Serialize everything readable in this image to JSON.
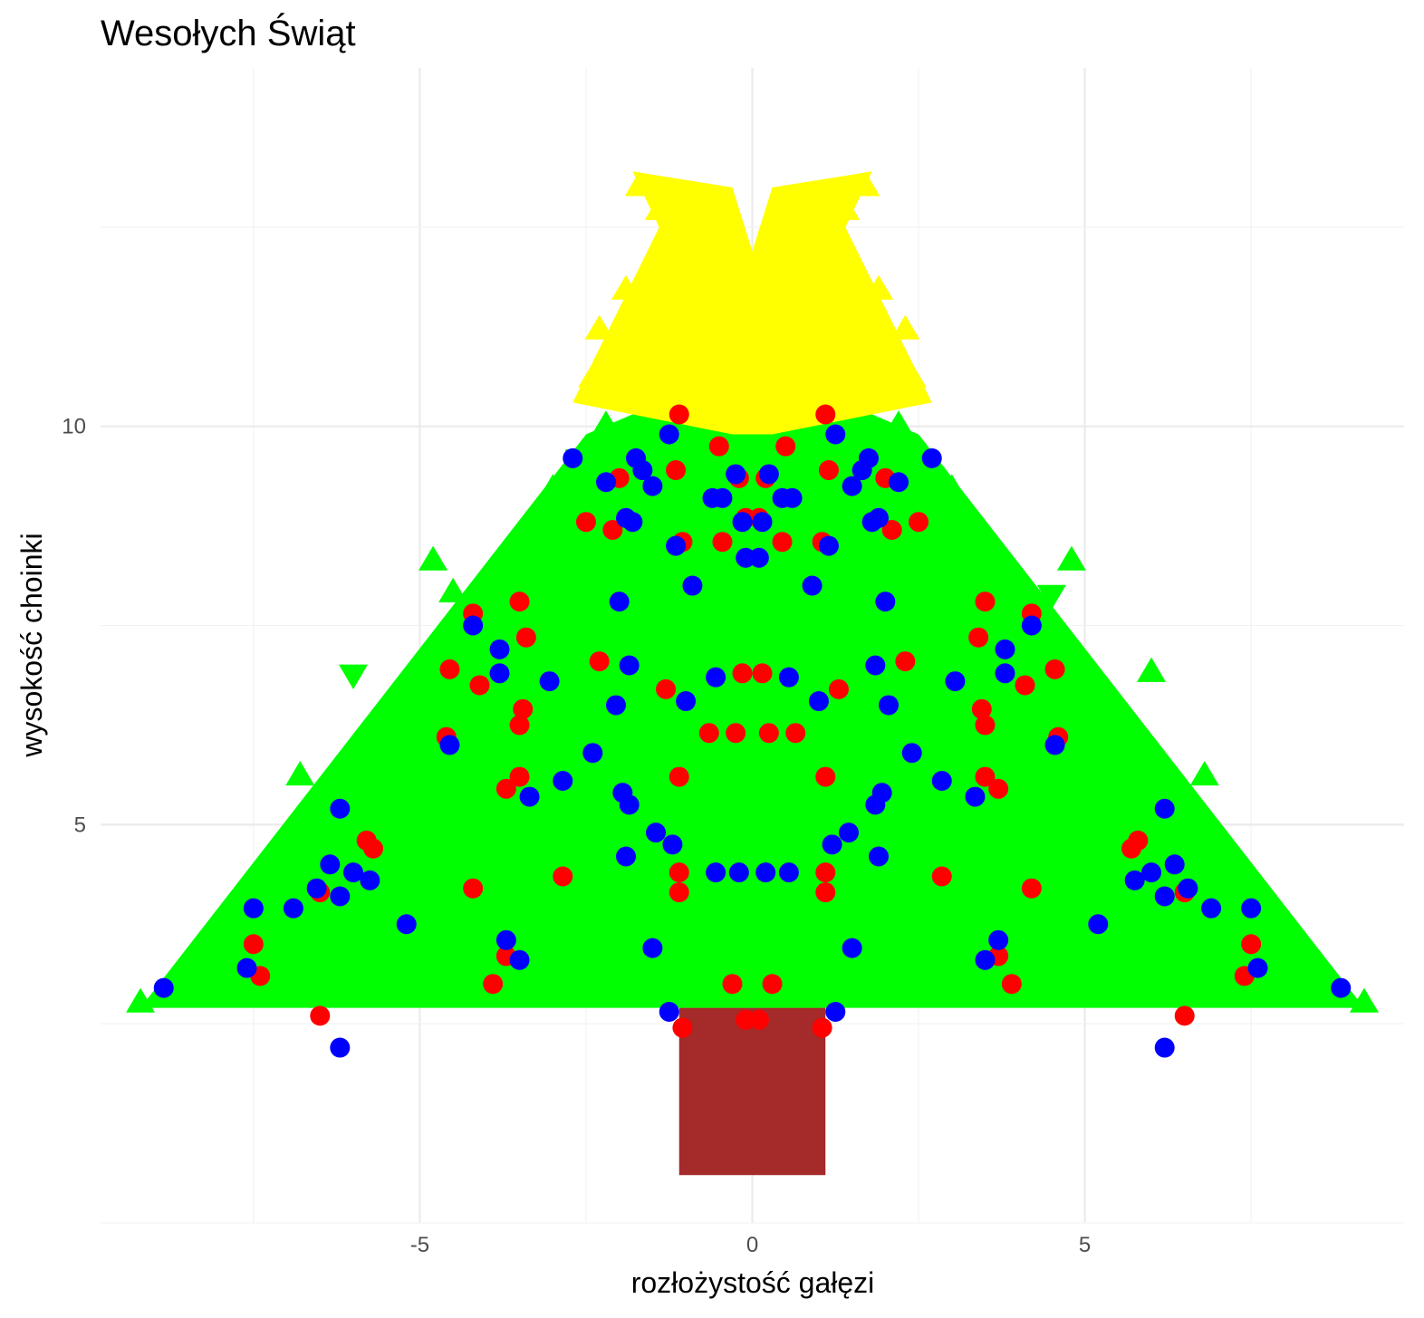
{
  "chart_data": {
    "type": "scatter",
    "title": "Wesołych Świąt",
    "xlabel": "rozłożystość gałęzi",
    "ylabel": "wysokość choinki",
    "xlim": [
      -9.8,
      9.8
    ],
    "ylim": [
      0.0,
      14.5
    ],
    "x_ticks": [
      -5,
      0,
      5
    ],
    "x_tick_labels": [
      "-5",
      "0",
      "5"
    ],
    "y_ticks": [
      5,
      10
    ],
    "y_tick_labels": [
      "5",
      "10"
    ],
    "grid": true,
    "legend": "none",
    "trunk": {
      "x": [
        -1.1,
        1.1
      ],
      "y": [
        0.6,
        2.7
      ],
      "color": "#a52a2a"
    },
    "tree": {
      "color": "#00ff00",
      "shape": "triangle",
      "outline": [
        [
          -9.2,
          2.7
        ],
        [
          9.2,
          2.7
        ],
        [
          2.5,
          9.9
        ],
        [
          0,
          10.8
        ],
        [
          -2.5,
          9.9
        ]
      ],
      "points": [
        [
          -9.2,
          2.75
        ],
        [
          9.2,
          2.75
        ],
        [
          -7.6,
          3.8
        ],
        [
          7.6,
          3.8
        ],
        [
          -6.8,
          5.6
        ],
        [
          6.8,
          5.6
        ],
        [
          -6.7,
          4.5
        ],
        [
          6.7,
          4.5
        ],
        [
          -7.3,
          4.2
        ],
        [
          7.3,
          4.2
        ],
        [
          -6.0,
          6.9
        ],
        [
          6.0,
          6.9
        ],
        [
          -5.0,
          6.2
        ],
        [
          5.0,
          6.2
        ],
        [
          -4.8,
          8.3
        ],
        [
          4.8,
          8.3
        ],
        [
          -4.5,
          7.9
        ],
        [
          4.5,
          7.9
        ],
        [
          -3.7,
          8.0
        ],
        [
          3.7,
          8.0
        ],
        [
          -3.3,
          8.3
        ],
        [
          3.3,
          8.3
        ],
        [
          -3.0,
          9.2
        ],
        [
          3.0,
          9.2
        ],
        [
          -2.6,
          9.6
        ],
        [
          2.6,
          9.6
        ],
        [
          -2.2,
          10.0
        ],
        [
          2.2,
          10.0
        ],
        [
          -1.6,
          10.3
        ],
        [
          1.6,
          10.3
        ],
        [
          -5.5,
          3.2
        ],
        [
          5.5,
          3.2
        ],
        [
          -3.5,
          4.0
        ],
        [
          3.5,
          4.0
        ],
        [
          -2.0,
          3.0
        ],
        [
          2.0,
          3.0
        ]
      ]
    },
    "star": {
      "color": "#ffff00",
      "shape": "triangle",
      "outline": [
        [
          -0.3,
          9.9
        ],
        [
          0.3,
          9.9
        ],
        [
          2.7,
          10.3
        ],
        [
          1.4,
          12.5
        ],
        [
          1.8,
          13.2
        ],
        [
          0.3,
          13.0
        ],
        [
          0,
          12.2
        ],
        [
          -0.3,
          13.0
        ],
        [
          -1.8,
          13.2
        ],
        [
          -1.4,
          12.5
        ],
        [
          -2.7,
          10.3
        ]
      ],
      "points": [
        [
          -1.7,
          13.0
        ],
        [
          1.7,
          13.0
        ],
        [
          -1.4,
          12.7
        ],
        [
          1.4,
          12.7
        ],
        [
          -0.6,
          12.5
        ],
        [
          0.6,
          12.5
        ],
        [
          -1.9,
          11.7
        ],
        [
          1.9,
          11.7
        ],
        [
          -1.6,
          11.3
        ],
        [
          1.6,
          11.3
        ],
        [
          -2.4,
          10.6
        ],
        [
          2.4,
          10.6
        ],
        [
          -2.1,
          10.4
        ],
        [
          2.1,
          10.4
        ],
        [
          -1.0,
          11.8
        ],
        [
          1.0,
          11.8
        ],
        [
          -0.5,
          11.0
        ],
        [
          0.5,
          11.0
        ],
        [
          -2.3,
          11.2
        ],
        [
          2.3,
          11.2
        ],
        [
          0.0,
          12.0
        ]
      ]
    },
    "series": [
      {
        "color": "#ff0000",
        "shape": "circle",
        "points": [
          [
            -1.1,
            10.15
          ],
          [
            1.1,
            10.15
          ],
          [
            -1.15,
            9.45
          ],
          [
            1.15,
            9.45
          ],
          [
            -0.5,
            9.75
          ],
          [
            0.5,
            9.75
          ],
          [
            -0.2,
            9.35
          ],
          [
            0.2,
            9.35
          ],
          [
            -0.1,
            8.85
          ],
          [
            0.1,
            8.85
          ],
          [
            -2.0,
            9.35
          ],
          [
            2.0,
            9.35
          ],
          [
            -2.5,
            8.8
          ],
          [
            2.5,
            8.8
          ],
          [
            -2.1,
            8.7
          ],
          [
            2.1,
            8.7
          ],
          [
            -1.05,
            8.55
          ],
          [
            1.05,
            8.55
          ],
          [
            -0.45,
            8.55
          ],
          [
            0.45,
            8.55
          ],
          [
            -3.5,
            7.8
          ],
          [
            3.5,
            7.8
          ],
          [
            -4.2,
            7.65
          ],
          [
            4.2,
            7.65
          ],
          [
            -3.4,
            7.35
          ],
          [
            3.4,
            7.35
          ],
          [
            -2.3,
            7.05
          ],
          [
            2.3,
            7.05
          ],
          [
            -4.55,
            6.95
          ],
          [
            4.55,
            6.95
          ],
          [
            -4.1,
            6.75
          ],
          [
            4.1,
            6.75
          ],
          [
            -1.3,
            6.7
          ],
          [
            1.3,
            6.7
          ],
          [
            -0.15,
            6.9
          ],
          [
            0.15,
            6.9
          ],
          [
            -3.45,
            6.45
          ],
          [
            3.45,
            6.45
          ],
          [
            -3.5,
            6.25
          ],
          [
            3.5,
            6.25
          ],
          [
            -0.65,
            6.15
          ],
          [
            0.65,
            6.15
          ],
          [
            -0.25,
            6.15
          ],
          [
            0.25,
            6.15
          ],
          [
            -4.6,
            6.1
          ],
          [
            4.6,
            6.1
          ],
          [
            -3.5,
            5.6
          ],
          [
            3.5,
            5.6
          ],
          [
            -1.1,
            5.6
          ],
          [
            1.1,
            5.6
          ],
          [
            -3.7,
            5.45
          ],
          [
            3.7,
            5.45
          ],
          [
            -5.8,
            4.8
          ],
          [
            5.8,
            4.8
          ],
          [
            -5.7,
            4.7
          ],
          [
            5.7,
            4.7
          ],
          [
            -1.1,
            4.4
          ],
          [
            1.1,
            4.4
          ],
          [
            -2.85,
            4.35
          ],
          [
            2.85,
            4.35
          ],
          [
            -4.2,
            4.2
          ],
          [
            4.2,
            4.2
          ],
          [
            -6.5,
            4.15
          ],
          [
            6.5,
            4.15
          ],
          [
            -1.1,
            4.15
          ],
          [
            1.1,
            4.15
          ],
          [
            -7.5,
            3.5
          ],
          [
            7.5,
            3.5
          ],
          [
            -3.7,
            3.35
          ],
          [
            3.7,
            3.35
          ],
          [
            -7.4,
            3.1
          ],
          [
            7.4,
            3.1
          ],
          [
            -3.9,
            3.0
          ],
          [
            3.9,
            3.0
          ],
          [
            -0.3,
            3.0
          ],
          [
            0.3,
            3.0
          ],
          [
            -6.5,
            2.6
          ],
          [
            6.5,
            2.6
          ],
          [
            -0.1,
            2.55
          ],
          [
            0.1,
            2.55
          ],
          [
            -1.05,
            2.45
          ],
          [
            1.05,
            2.45
          ]
        ]
      },
      {
        "color": "#0000ff",
        "shape": "circle",
        "points": [
          [
            -1.25,
            9.9
          ],
          [
            1.25,
            9.9
          ],
          [
            -2.7,
            9.6
          ],
          [
            2.7,
            9.6
          ],
          [
            -1.75,
            9.6
          ],
          [
            1.75,
            9.6
          ],
          [
            -1.65,
            9.45
          ],
          [
            1.65,
            9.45
          ],
          [
            -2.2,
            9.3
          ],
          [
            2.2,
            9.3
          ],
          [
            -1.5,
            9.25
          ],
          [
            1.5,
            9.25
          ],
          [
            -0.25,
            9.4
          ],
          [
            0.25,
            9.4
          ],
          [
            -0.6,
            9.1
          ],
          [
            0.6,
            9.1
          ],
          [
            -0.45,
            9.1
          ],
          [
            0.45,
            9.1
          ],
          [
            -1.9,
            8.85
          ],
          [
            1.9,
            8.85
          ],
          [
            -1.8,
            8.8
          ],
          [
            1.8,
            8.8
          ],
          [
            -0.15,
            8.8
          ],
          [
            0.15,
            8.8
          ],
          [
            -1.15,
            8.5
          ],
          [
            1.15,
            8.5
          ],
          [
            -0.1,
            8.35
          ],
          [
            0.1,
            8.35
          ],
          [
            -0.9,
            8.0
          ],
          [
            0.9,
            8.0
          ],
          [
            -2.0,
            7.8
          ],
          [
            2.0,
            7.8
          ],
          [
            -4.2,
            7.5
          ],
          [
            4.2,
            7.5
          ],
          [
            -3.8,
            7.2
          ],
          [
            3.8,
            7.2
          ],
          [
            -1.85,
            7.0
          ],
          [
            1.85,
            7.0
          ],
          [
            -0.55,
            6.85
          ],
          [
            0.55,
            6.85
          ],
          [
            -3.05,
            6.8
          ],
          [
            3.05,
            6.8
          ],
          [
            -3.8,
            6.9
          ],
          [
            3.8,
            6.9
          ],
          [
            -2.05,
            6.5
          ],
          [
            2.05,
            6.5
          ],
          [
            -1.0,
            6.55
          ],
          [
            1.0,
            6.55
          ],
          [
            -4.55,
            6.0
          ],
          [
            4.55,
            6.0
          ],
          [
            -2.4,
            5.9
          ],
          [
            2.4,
            5.9
          ],
          [
            -2.85,
            5.55
          ],
          [
            2.85,
            5.55
          ],
          [
            -1.95,
            5.4
          ],
          [
            1.95,
            5.4
          ],
          [
            -1.85,
            5.25
          ],
          [
            1.85,
            5.25
          ],
          [
            -3.35,
            5.35
          ],
          [
            3.35,
            5.35
          ],
          [
            -6.2,
            5.2
          ],
          [
            6.2,
            5.2
          ],
          [
            -1.45,
            4.9
          ],
          [
            1.45,
            4.9
          ],
          [
            -1.2,
            4.75
          ],
          [
            1.2,
            4.75
          ],
          [
            -1.9,
            4.6
          ],
          [
            1.9,
            4.6
          ],
          [
            -0.55,
            4.4
          ],
          [
            0.55,
            4.4
          ],
          [
            -0.2,
            4.4
          ],
          [
            0.2,
            4.4
          ],
          [
            -6.35,
            4.5
          ],
          [
            6.35,
            4.5
          ],
          [
            -6.0,
            4.4
          ],
          [
            6.0,
            4.4
          ],
          [
            -5.75,
            4.3
          ],
          [
            5.75,
            4.3
          ],
          [
            -6.55,
            4.2
          ],
          [
            6.55,
            4.2
          ],
          [
            -6.2,
            4.1
          ],
          [
            6.2,
            4.1
          ],
          [
            -7.5,
            3.95
          ],
          [
            7.5,
            3.95
          ],
          [
            -6.9,
            3.95
          ],
          [
            6.9,
            3.95
          ],
          [
            -5.2,
            3.75
          ],
          [
            5.2,
            3.75
          ],
          [
            -3.7,
            3.55
          ],
          [
            3.7,
            3.55
          ],
          [
            -1.5,
            3.45
          ],
          [
            1.5,
            3.45
          ],
          [
            -3.5,
            3.3
          ],
          [
            3.5,
            3.3
          ],
          [
            -7.6,
            3.2
          ],
          [
            7.6,
            3.2
          ],
          [
            -8.85,
            2.95
          ],
          [
            8.85,
            2.95
          ],
          [
            -1.25,
            2.65
          ],
          [
            1.25,
            2.65
          ],
          [
            -6.2,
            2.2
          ],
          [
            6.2,
            2.2
          ]
        ]
      }
    ]
  }
}
